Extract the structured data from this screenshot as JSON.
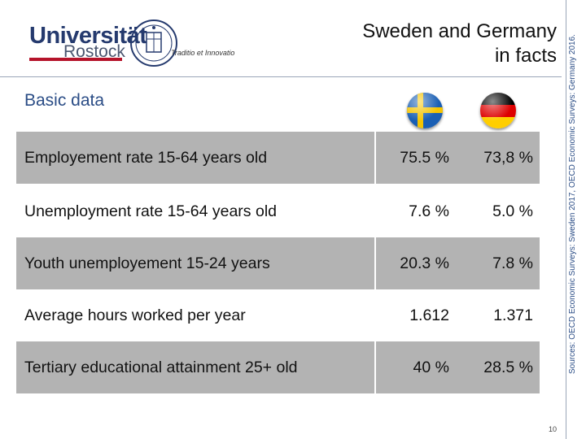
{
  "header": {
    "logo_name": "Universität",
    "logo_sub": "Rostock",
    "logo_motto": "Traditio et Innovatio",
    "title_line1": "Sweden and Germany",
    "title_line2": "in facts"
  },
  "section_title": "Basic data",
  "flags": [
    {
      "country": "Sweden",
      "icon": "sweden-flag-icon",
      "colors": [
        "#1a5fb4",
        "#f5c400"
      ]
    },
    {
      "country": "Germany",
      "icon": "germany-flag-icon",
      "colors": [
        "#000000",
        "#dd0000",
        "#ffce00"
      ]
    }
  ],
  "rows": [
    {
      "label": "Employement rate 15-64 years old",
      "sweden": "75.5 %",
      "germany": "73,8 %",
      "shaded": true
    },
    {
      "label": "Unemployment rate 15-64 years old",
      "sweden": "7.6 %",
      "germany": "5.0 %",
      "shaded": false
    },
    {
      "label": "Youth unemployement 15-24 years",
      "sweden": "20.3 %",
      "germany": "7.8 %",
      "shaded": true
    },
    {
      "label": "Average hours worked per year",
      "sweden": "1.612",
      "germany": "1.371",
      "shaded": false
    },
    {
      "label": "Tertiary educational attainment 25+  old",
      "sweden": "40 %",
      "germany": "28.5 %",
      "shaded": true
    }
  ],
  "sources": "Sources: OECD Economic Surveys: Sweden 2017, OECD Economic Surveys: Germany 2016.",
  "page_number": "10",
  "colors": {
    "row_shade": "#b3b3b3",
    "heading_blue": "#2b4d86",
    "logo_red": "#b5132a"
  }
}
